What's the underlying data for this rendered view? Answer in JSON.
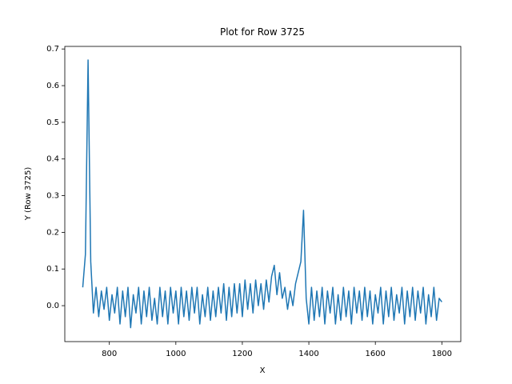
{
  "chart_data": {
    "type": "line",
    "title": "Plot for Row 3725",
    "x_label": "X",
    "y_label": "Y (Row 3725)",
    "x": [
      720,
      728,
      736,
      744,
      752,
      760,
      768,
      776,
      784,
      792,
      800,
      808,
      816,
      824,
      832,
      840,
      848,
      856,
      864,
      872,
      880,
      888,
      896,
      904,
      912,
      920,
      928,
      936,
      944,
      952,
      960,
      968,
      976,
      984,
      992,
      1000,
      1008,
      1016,
      1024,
      1032,
      1040,
      1048,
      1056,
      1064,
      1072,
      1080,
      1088,
      1096,
      1104,
      1112,
      1120,
      1128,
      1136,
      1144,
      1152,
      1160,
      1168,
      1176,
      1184,
      1192,
      1200,
      1208,
      1216,
      1224,
      1232,
      1240,
      1248,
      1256,
      1264,
      1272,
      1280,
      1288,
      1296,
      1304,
      1312,
      1320,
      1328,
      1336,
      1344,
      1352,
      1360,
      1368,
      1376,
      1384,
      1392,
      1400,
      1408,
      1416,
      1424,
      1432,
      1440,
      1448,
      1456,
      1464,
      1472,
      1480,
      1488,
      1496,
      1504,
      1512,
      1520,
      1528,
      1536,
      1544,
      1552,
      1560,
      1568,
      1576,
      1584,
      1592,
      1600,
      1608,
      1616,
      1624,
      1632,
      1640,
      1648,
      1656,
      1664,
      1672,
      1680,
      1688,
      1696,
      1704,
      1712,
      1720,
      1728,
      1736,
      1744,
      1752,
      1760,
      1768,
      1776,
      1784,
      1792,
      1800
    ],
    "series": [
      {
        "name": "Row 3725",
        "color": "#1f77b4",
        "values": [
          0.05,
          0.14,
          0.67,
          0.12,
          -0.02,
          0.05,
          -0.03,
          0.04,
          -0.01,
          0.05,
          -0.04,
          0.03,
          -0.02,
          0.05,
          -0.05,
          0.04,
          -0.03,
          0.05,
          -0.06,
          0.03,
          -0.02,
          0.05,
          -0.05,
          0.04,
          -0.03,
          0.05,
          -0.04,
          0.02,
          -0.05,
          0.05,
          -0.03,
          0.04,
          -0.05,
          0.05,
          -0.02,
          0.04,
          -0.05,
          0.05,
          -0.03,
          0.04,
          -0.04,
          0.05,
          -0.02,
          0.05,
          -0.05,
          0.03,
          -0.03,
          0.05,
          -0.04,
          0.04,
          -0.03,
          0.05,
          -0.02,
          0.06,
          -0.04,
          0.05,
          -0.03,
          0.06,
          -0.02,
          0.06,
          -0.03,
          0.07,
          -0.01,
          0.06,
          -0.02,
          0.07,
          0.0,
          0.06,
          -0.01,
          0.07,
          0.01,
          0.08,
          0.11,
          0.03,
          0.09,
          0.02,
          0.05,
          -0.01,
          0.04,
          0.0,
          0.06,
          0.09,
          0.12,
          0.26,
          0.02,
          -0.05,
          0.05,
          -0.04,
          0.04,
          -0.03,
          0.05,
          -0.05,
          0.04,
          -0.02,
          0.05,
          -0.05,
          0.03,
          -0.04,
          0.05,
          -0.03,
          0.04,
          -0.05,
          0.05,
          -0.02,
          0.04,
          -0.04,
          0.05,
          -0.03,
          0.04,
          -0.05,
          0.03,
          -0.02,
          0.05,
          -0.05,
          0.04,
          -0.03,
          0.05,
          -0.04,
          0.03,
          -0.02,
          0.05,
          -0.05,
          0.04,
          -0.03,
          0.05,
          -0.04,
          0.04,
          -0.02,
          0.05,
          -0.05,
          0.03,
          -0.03,
          0.05,
          -0.04,
          0.02,
          0.01
        ]
      }
    ],
    "xlim": [
      666,
      1857
    ],
    "ylim": [
      -0.098,
      0.707
    ],
    "xticks": [
      800,
      1000,
      1200,
      1400,
      1600,
      1800
    ],
    "yticks": [
      {
        "value": 0,
        "label": "0.0"
      },
      0.1,
      0.2,
      0.3,
      0.4,
      0.5,
      0.6,
      0.7
    ]
  }
}
